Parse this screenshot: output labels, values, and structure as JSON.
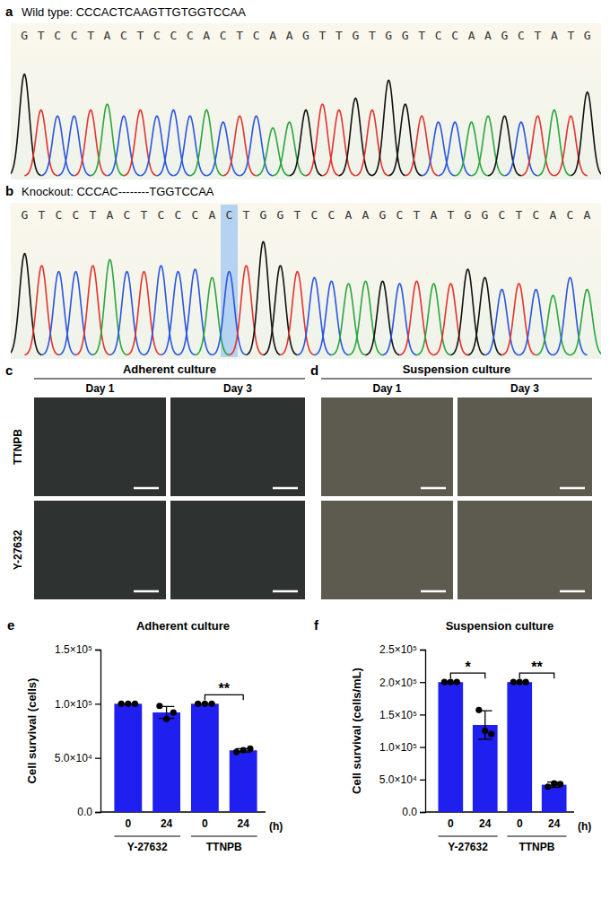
{
  "chromatograms": [
    {
      "label": "a",
      "title": "Wild type: CCCACTCAAGTTGTGGTCCAA",
      "sequence": "GTCCTACTCCCACTCAAGTTGTGGTCCAAGCTATG",
      "peak_heights": [
        0.85,
        0.55,
        0.5,
        0.5,
        0.55,
        0.6,
        0.5,
        0.55,
        0.5,
        0.55,
        0.5,
        0.55,
        0.45,
        0.5,
        0.5,
        0.4,
        0.45,
        0.55,
        0.6,
        0.55,
        0.65,
        0.55,
        0.8,
        0.6,
        0.5,
        0.45,
        0.45,
        0.45,
        0.5,
        0.5,
        0.45,
        0.5,
        0.55,
        0.5,
        0.7
      ]
    },
    {
      "label": "b",
      "title": "Knockout: CCCAC--------TGGTCCAA",
      "sequence": "GTCCTACTCCCACTGGTCCAAGCTATGGCTCACA",
      "highlight_index": 12,
      "peak_heights": [
        0.85,
        0.75,
        0.7,
        0.7,
        0.75,
        0.8,
        0.7,
        0.7,
        0.75,
        0.7,
        0.72,
        0.65,
        0.7,
        0.75,
        0.95,
        0.75,
        0.7,
        0.65,
        0.62,
        0.6,
        0.62,
        0.62,
        0.6,
        0.62,
        0.6,
        0.6,
        0.72,
        0.65,
        0.55,
        0.6,
        0.55,
        0.5,
        0.65,
        0.55
      ]
    }
  ],
  "micrographs": [
    {
      "label": "c",
      "title": "Adherent culture",
      "columns": [
        "Day 1",
        "Day 3"
      ],
      "rows": [
        "TTNPB",
        "Y-27632"
      ]
    },
    {
      "label": "d",
      "title": "Suspension culture",
      "columns": [
        "Day 1",
        "Day 3"
      ],
      "rows": [
        "TTNPB",
        "Y-27632"
      ]
    }
  ],
  "chart_data": [
    {
      "label": "e",
      "type": "bar",
      "title": "Adherent culture",
      "ylabel": "Cell survival (cells)",
      "xlabel": "(h)",
      "categories": [
        "0",
        "24",
        "0",
        "24"
      ],
      "groups": [
        "Y-27632",
        "TTNPB"
      ],
      "values": [
        100000,
        92000,
        100000,
        57000
      ],
      "errors": [
        0,
        5500,
        0,
        1500
      ],
      "points": [
        [
          100000,
          100000,
          100000
        ],
        [
          98000,
          86000,
          92000
        ],
        [
          100000,
          100000,
          100000
        ],
        [
          55500,
          57000,
          58500
        ]
      ],
      "color": "#1f1ff0",
      "ylim": [
        0,
        150000
      ],
      "yticks": [
        {
          "value": 0,
          "label": "0.0"
        },
        {
          "value": 50000,
          "label": "5.0×10⁴"
        },
        {
          "value": 100000,
          "label": "1.0×10⁵"
        },
        {
          "value": 150000,
          "label": "1.5×10⁵"
        }
      ],
      "annotations": [
        {
          "text": "**",
          "between": [
            2,
            3
          ]
        }
      ]
    },
    {
      "label": "f",
      "type": "bar",
      "title": "Suspension culture",
      "ylabel": "Cell survival (cells/mL)",
      "xlabel": "(h)",
      "categories": [
        "0",
        "24",
        "0",
        "24"
      ],
      "groups": [
        "Y-27632",
        "TTNPB"
      ],
      "values": [
        200000,
        134000,
        200000,
        42000
      ],
      "errors": [
        0,
        22000,
        0,
        4000
      ],
      "points": [
        [
          200000,
          200000,
          200000
        ],
        [
          157000,
          125000,
          120000
        ],
        [
          200000,
          200000,
          200000
        ],
        [
          39000,
          44000,
          43000
        ]
      ],
      "color": "#1f1ff0",
      "ylim": [
        0,
        250000
      ],
      "yticks": [
        {
          "value": 0,
          "label": "0.0"
        },
        {
          "value": 50000,
          "label": "5.0×10⁴"
        },
        {
          "value": 100000,
          "label": "1.0×10⁵"
        },
        {
          "value": 150000,
          "label": "1.5×10⁵"
        },
        {
          "value": 200000,
          "label": "2.0×10⁵"
        },
        {
          "value": 250000,
          "label": "2.5×10⁵"
        }
      ],
      "annotations": [
        {
          "text": "*",
          "between": [
            0,
            1
          ]
        },
        {
          "text": "**",
          "between": [
            2,
            3
          ]
        }
      ]
    }
  ]
}
